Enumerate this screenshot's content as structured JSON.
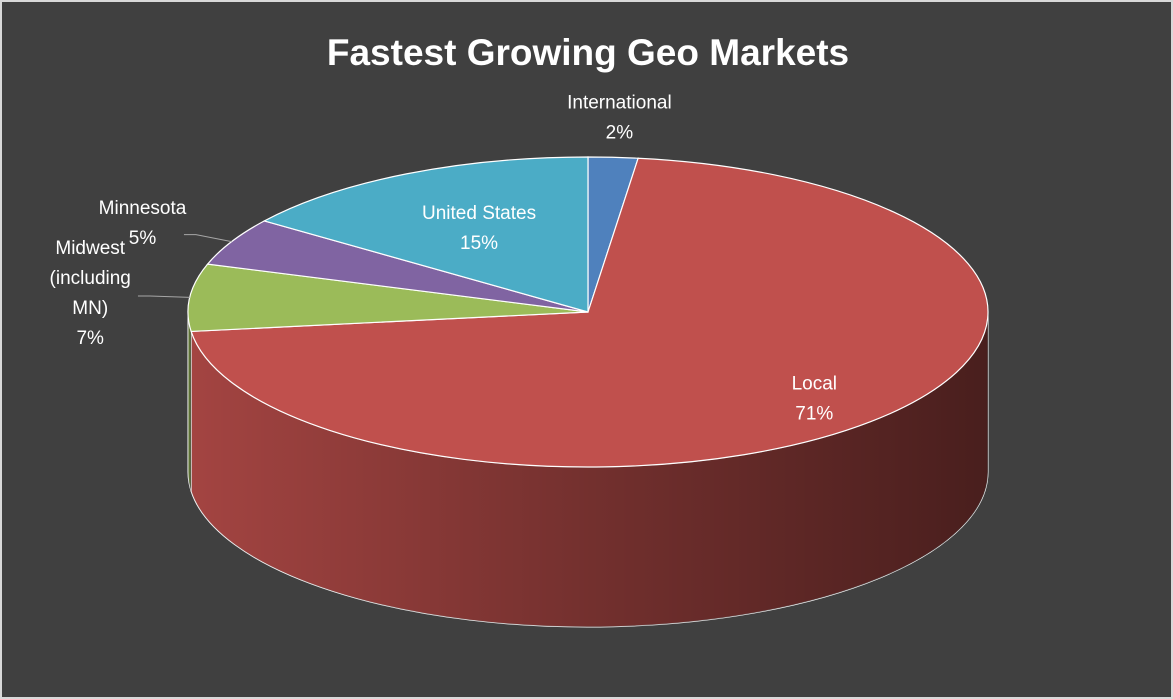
{
  "chart_data": {
    "type": "pie3d",
    "title": "Fastest Growing Geo Markets",
    "categories": [
      "International",
      "Local",
      "Midwest (including MN)",
      "Minnesota",
      "United States"
    ],
    "values": [
      2,
      71,
      7,
      5,
      15
    ],
    "value_labels": [
      "2%",
      "71%",
      "7%",
      "5%",
      "15%"
    ],
    "colors": [
      "#4f81bd",
      "#c0504d",
      "#9bbb59",
      "#8064a2",
      "#4bacc6"
    ],
    "legend": false
  }
}
